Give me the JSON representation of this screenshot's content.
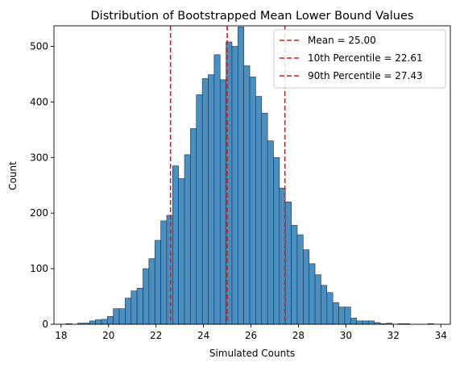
{
  "chart_data": {
    "type": "bar",
    "title": "Distribution of Bootstrapped Mean Lower Bound Values",
    "xlabel": "Simulated Counts",
    "ylabel": "Count",
    "xlim": [
      17.7,
      34.4
    ],
    "ylim": [
      0,
      537
    ],
    "xticks": [
      18,
      20,
      22,
      24,
      26,
      28,
      30,
      32,
      34
    ],
    "yticks": [
      0,
      100,
      200,
      300,
      400,
      500
    ],
    "grid": false,
    "legend_position": "top-right",
    "bar_color": "#4a8fc2",
    "bar_edge_color": "#1f2f3d",
    "bin_width": 0.25,
    "bins_start": 18.2,
    "counts": [
      1,
      0,
      2,
      2,
      6,
      8,
      9,
      14,
      28,
      28,
      47,
      60,
      65,
      100,
      118,
      151,
      186,
      196,
      285,
      262,
      305,
      352,
      413,
      442,
      449,
      485,
      440,
      508,
      500,
      535,
      465,
      445,
      410,
      380,
      330,
      300,
      245,
      220,
      178,
      161,
      134,
      109,
      89,
      70,
      57,
      39,
      31,
      31,
      11,
      6,
      6,
      6,
      3,
      1,
      2,
      0,
      1,
      1,
      0,
      0,
      0,
      1
    ],
    "vlines": [
      {
        "name": "Mean = 25.00",
        "x": 25.0,
        "color": "#e31a1c"
      },
      {
        "name": "10th Percentile = 22.61",
        "x": 22.61,
        "color": "#e31a1c"
      },
      {
        "name": "90th Percentile = 27.43",
        "x": 27.43,
        "color": "#e31a1c"
      }
    ]
  }
}
